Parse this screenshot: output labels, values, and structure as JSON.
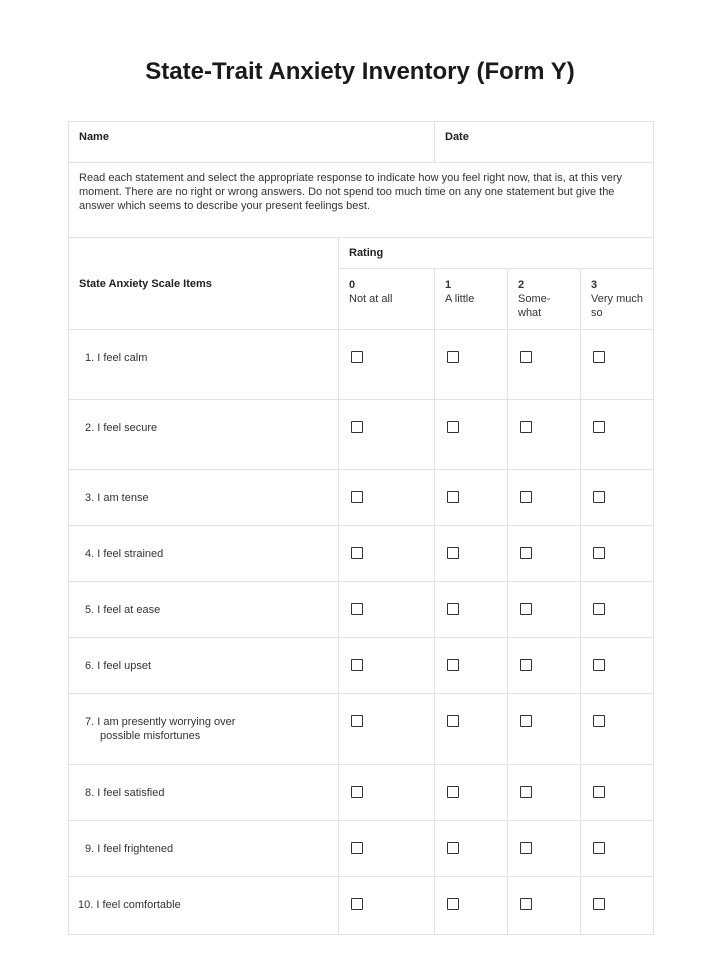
{
  "title": "State-Trait Anxiety Inventory (Form Y)",
  "fields": {
    "name_label": "Name",
    "date_label": "Date"
  },
  "instructions": "Read each statement and select the appropriate response to indicate how you feel right now, that is, at this very moment. There are no right or wrong answers. Do not spend too much time on any one statement but give the answer which seems to describe your present feelings best.",
  "header": {
    "items_label": "State Anxiety Scale Items",
    "rating_label": "Rating",
    "options": [
      {
        "value": "0",
        "label": "Not at all"
      },
      {
        "value": "1",
        "label": "A little"
      },
      {
        "value": "2",
        "label": "Some-what"
      },
      {
        "value": "3",
        "label": "Very much so"
      }
    ]
  },
  "items": [
    {
      "text": "1. I feel calm"
    },
    {
      "text": "2. I feel secure"
    },
    {
      "text": "3. I am tense"
    },
    {
      "text": "4. I feel strained"
    },
    {
      "text": "5. I feel at ease"
    },
    {
      "text": "6. I feel upset"
    },
    {
      "text": "7. I am presently worrying over",
      "text2": "possible misfortunes"
    },
    {
      "text": "8. I feel satisfied"
    },
    {
      "text": "9. I feel frightened"
    },
    {
      "text": "10. I feel comfortable"
    }
  ]
}
